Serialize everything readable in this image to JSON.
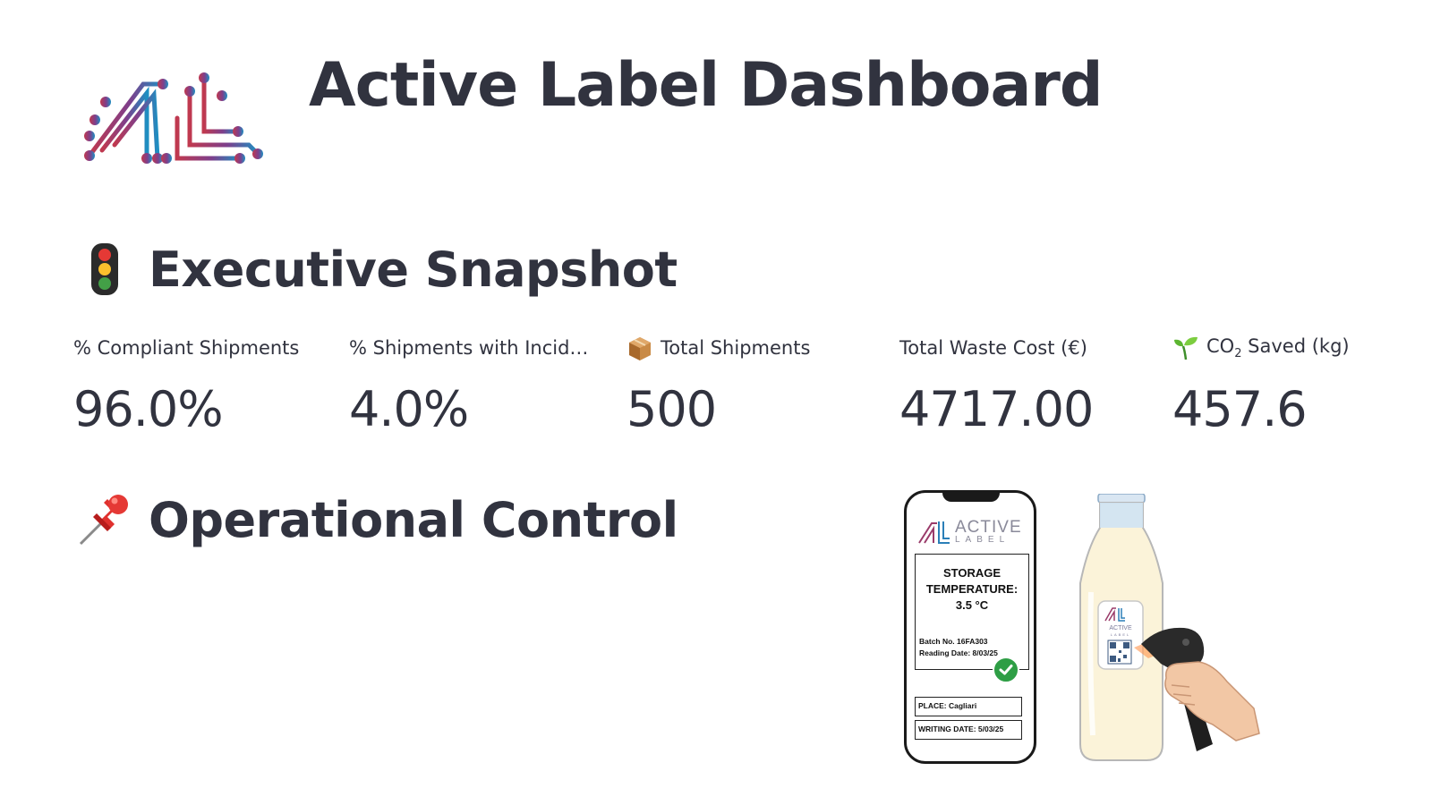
{
  "header": {
    "title": "Active Label Dashboard",
    "logo_icon": "active-label-logo-icon",
    "logo_colors": [
      "#b23a5a",
      "#8a3f86",
      "#3a6fb0",
      "#1e8fc2"
    ]
  },
  "sections": {
    "snapshot": {
      "emoji": "traffic-light-icon",
      "title": "Executive Snapshot"
    },
    "operational": {
      "emoji": "pushpin-icon",
      "title": "Operational Control"
    }
  },
  "metrics": [
    {
      "label": "% Compliant Shipments",
      "value": "96.0%",
      "icon": ""
    },
    {
      "label": "% Shipments with Incid…",
      "value": "4.0%",
      "icon": ""
    },
    {
      "label": "Total Shipments",
      "value": "500",
      "icon": "package-icon"
    },
    {
      "label": "Total Waste Cost (€)",
      "value": "4717.00",
      "icon": ""
    },
    {
      "label_prefix": "CO",
      "label_sub": "2",
      "label_suffix": " Saved (kg)",
      "value": "457.6",
      "icon": "seedling-icon"
    }
  ],
  "illustration": {
    "phone": {
      "brand": "ACTIVE",
      "brand_sub": "LABEL",
      "card_title_1": "STORAGE",
      "card_title_2": "TEMPERATURE:",
      "card_title_3": "3.5 °C",
      "batch": "Batch No. 16FA303",
      "reading_date": "Reading Date: 8/03/25",
      "place": "PLACE: Cagliari",
      "writing_date": "WRITING DATE: 5/03/25",
      "status_icon": "check-circle-icon"
    },
    "bottle": {
      "label_brand": "ACTIVE",
      "label_sub": "LABEL",
      "scanner_icon": "barcode-scanner-icon"
    }
  }
}
